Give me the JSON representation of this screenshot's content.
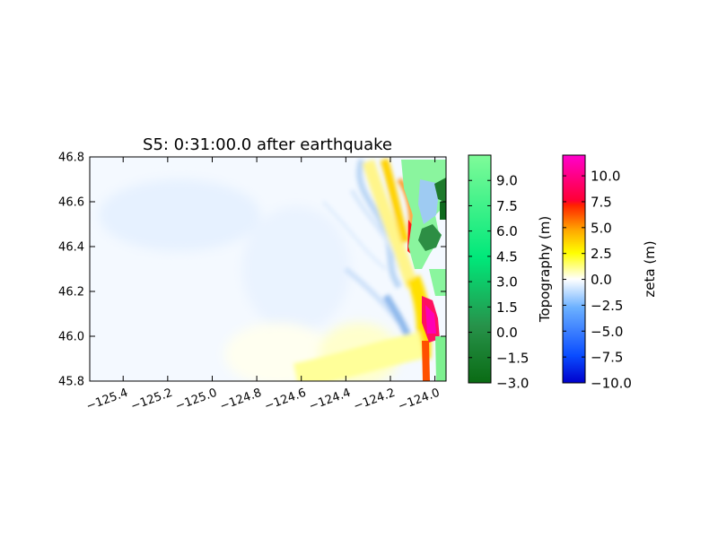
{
  "chart_data": {
    "type": "heatmap",
    "title": "S5: 0:31:00.0 after earthquake",
    "xlabel": "",
    "ylabel": "",
    "xlim": [
      -125.55,
      -123.95
    ],
    "ylim": [
      45.8,
      46.8
    ],
    "x_ticks": [
      "−125.4",
      "−125.2",
      "−125.0",
      "−124.8",
      "−124.6",
      "−124.4",
      "−124.2",
      "−124.0"
    ],
    "x_tick_values": [
      -125.4,
      -125.2,
      -125.0,
      -124.8,
      -124.6,
      -124.4,
      -124.2,
      -124.0
    ],
    "y_ticks": [
      "46.8",
      "46.6",
      "46.4",
      "46.2",
      "46.0",
      "45.8"
    ],
    "y_tick_values": [
      46.8,
      46.6,
      46.4,
      46.2,
      46.0,
      45.8
    ],
    "colorbars": [
      {
        "label": "Topography (m)",
        "range": [
          -3.0,
          10.5
        ],
        "ticks": [
          "9.0",
          "7.5",
          "6.0",
          "4.5",
          "3.0",
          "1.5",
          "0.0",
          "−1.5",
          "−3.0"
        ],
        "tick_values": [
          9.0,
          7.5,
          6.0,
          4.5,
          3.0,
          1.5,
          0.0,
          -1.5,
          -3.0
        ],
        "colors": [
          "#0a6b14",
          "#27924a",
          "#00e87a",
          "#7ffb99"
        ]
      },
      {
        "label": "zeta (m)",
        "range": [
          -10.0,
          12.0
        ],
        "ticks": [
          "10.0",
          "7.5",
          "5.0",
          "2.5",
          "0.0",
          "−2.5",
          "−5.0",
          "−7.5",
          "−10.0"
        ],
        "tick_values": [
          10.0,
          7.5,
          5.0,
          2.5,
          0.0,
          -2.5,
          -5.0,
          -7.5,
          -10.0
        ],
        "colors": [
          "#0000cc",
          "#0a4cff",
          "#6bb0ff",
          "#ffffff",
          "#ffff00",
          "#ffa800",
          "#ff2200",
          "#ff0066",
          "#ff00cc"
        ]
      }
    ],
    "grid": false
  }
}
